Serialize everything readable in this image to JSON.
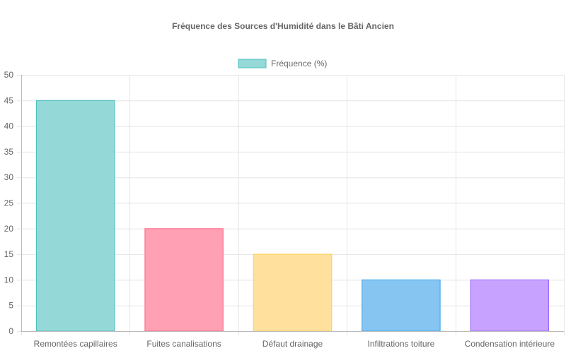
{
  "chart_data": {
    "type": "bar",
    "title": "Fréquence des Sources d'Humidité dans le Bâti Ancien",
    "categories": [
      "Remontées capillaires",
      "Fuites canalisations",
      "Défaut drainage",
      "Infiltrations toiture",
      "Condensation intérieure"
    ],
    "series": [
      {
        "name": "Fréquence (%)",
        "values": [
          45,
          20,
          15,
          10,
          10
        ],
        "fill_colors": [
          "#94D9D7",
          "#FFA0B4",
          "#FFE09D",
          "#86C5F2",
          "#C7A2FF"
        ],
        "border_colors": [
          "#4BC0C0",
          "#FF6384",
          "#FFCE56",
          "#36A2EB",
          "#9966FF"
        ]
      }
    ],
    "ylim": [
      0,
      50
    ],
    "yticks": [
      0,
      5,
      10,
      15,
      20,
      25,
      30,
      35,
      40,
      45,
      50
    ],
    "grid": true,
    "legend": "top-center",
    "legend_swatch_fill": "#94D9D7",
    "legend_swatch_border": "#4BC0C0"
  }
}
